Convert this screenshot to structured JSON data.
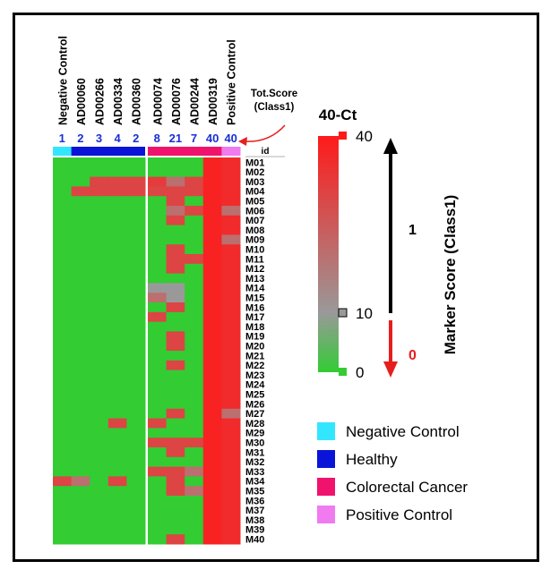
{
  "chart_data": {
    "type": "heatmap",
    "columns": [
      "Negative Control",
      "AD00060",
      "AD00266",
      "AD00334",
      "AD00360",
      "AD00074",
      "AD00076",
      "AD00244",
      "AD00319",
      "Positive Control"
    ],
    "tot_scores": [
      "1",
      "2",
      "3",
      "4",
      "2",
      "8",
      "21",
      "7",
      "40",
      "40"
    ],
    "groups": [
      "Negative Control",
      "Healthy",
      "Healthy",
      "Healthy",
      "Healthy",
      "Colorectal Cancer",
      "Colorectal Cancer",
      "Colorectal Cancer",
      "Colorectal Cancer",
      "Positive Control"
    ],
    "row_header": "id",
    "rows": [
      "M01",
      "M02",
      "M03",
      "M04",
      "M05",
      "M06",
      "M07",
      "M08",
      "M09",
      "M10",
      "M11",
      "M12",
      "M13",
      "M14",
      "M15",
      "M16",
      "M17",
      "M18",
      "M19",
      "M20",
      "M21",
      "M22",
      "M23",
      "M24",
      "M25",
      "M26",
      "M27",
      "M28",
      "M29",
      "M30",
      "M31",
      "M32",
      "M33",
      "M34",
      "M35",
      "M36",
      "M37",
      "M38",
      "M39",
      "M40"
    ],
    "values_40_minus_ct": [
      [
        0,
        0,
        0,
        0,
        0,
        0,
        0,
        0,
        38,
        36
      ],
      [
        0,
        0,
        0,
        0,
        0,
        0,
        0,
        0,
        38,
        36
      ],
      [
        0,
        0,
        30,
        30,
        30,
        32,
        20,
        30,
        38,
        36
      ],
      [
        0,
        30,
        30,
        30,
        30,
        30,
        30,
        30,
        38,
        36
      ],
      [
        0,
        0,
        0,
        0,
        0,
        0,
        30,
        0,
        38,
        36
      ],
      [
        0,
        0,
        0,
        0,
        0,
        0,
        20,
        30,
        38,
        20
      ],
      [
        0,
        0,
        0,
        0,
        0,
        0,
        30,
        0,
        38,
        36
      ],
      [
        0,
        0,
        0,
        0,
        0,
        0,
        0,
        0,
        38,
        36
      ],
      [
        0,
        0,
        0,
        0,
        0,
        0,
        0,
        0,
        38,
        20
      ],
      [
        0,
        0,
        0,
        0,
        0,
        0,
        30,
        0,
        38,
        36
      ],
      [
        0,
        0,
        0,
        0,
        0,
        0,
        30,
        30,
        38,
        36
      ],
      [
        0,
        0,
        0,
        0,
        0,
        0,
        30,
        0,
        38,
        36
      ],
      [
        0,
        0,
        0,
        0,
        0,
        0,
        0,
        0,
        38,
        36
      ],
      [
        0,
        0,
        0,
        0,
        0,
        10,
        10,
        0,
        38,
        36
      ],
      [
        0,
        0,
        0,
        0,
        0,
        20,
        10,
        0,
        38,
        36
      ],
      [
        0,
        0,
        0,
        0,
        0,
        0,
        30,
        0,
        38,
        36
      ],
      [
        0,
        0,
        0,
        0,
        0,
        30,
        0,
        0,
        38,
        36
      ],
      [
        0,
        0,
        0,
        0,
        0,
        0,
        0,
        0,
        38,
        36
      ],
      [
        0,
        0,
        0,
        0,
        0,
        0,
        30,
        0,
        38,
        36
      ],
      [
        0,
        0,
        0,
        0,
        0,
        0,
        30,
        0,
        38,
        36
      ],
      [
        0,
        0,
        0,
        0,
        0,
        0,
        0,
        0,
        38,
        36
      ],
      [
        0,
        0,
        0,
        0,
        0,
        0,
        30,
        0,
        38,
        36
      ],
      [
        0,
        0,
        0,
        0,
        0,
        0,
        0,
        0,
        38,
        36
      ],
      [
        0,
        0,
        0,
        0,
        0,
        0,
        0,
        0,
        38,
        36
      ],
      [
        0,
        0,
        0,
        0,
        0,
        0,
        0,
        0,
        38,
        36
      ],
      [
        0,
        0,
        0,
        0,
        0,
        0,
        0,
        0,
        38,
        36
      ],
      [
        0,
        0,
        0,
        0,
        0,
        0,
        30,
        0,
        38,
        20
      ],
      [
        0,
        0,
        0,
        30,
        0,
        30,
        0,
        0,
        38,
        36
      ],
      [
        0,
        0,
        0,
        0,
        0,
        0,
        0,
        0,
        38,
        36
      ],
      [
        0,
        0,
        0,
        0,
        0,
        30,
        30,
        30,
        38,
        36
      ],
      [
        0,
        0,
        0,
        0,
        0,
        0,
        30,
        0,
        38,
        36
      ],
      [
        0,
        0,
        0,
        0,
        0,
        0,
        0,
        0,
        38,
        36
      ],
      [
        0,
        0,
        0,
        0,
        0,
        30,
        30,
        20,
        38,
        36
      ],
      [
        30,
        20,
        0,
        30,
        0,
        0,
        30,
        0,
        38,
        36
      ],
      [
        0,
        0,
        0,
        0,
        0,
        0,
        30,
        20,
        38,
        36
      ],
      [
        0,
        0,
        0,
        0,
        0,
        0,
        0,
        0,
        38,
        36
      ],
      [
        0,
        0,
        0,
        0,
        0,
        0,
        0,
        0,
        38,
        36
      ],
      [
        0,
        0,
        0,
        0,
        0,
        0,
        0,
        0,
        38,
        36
      ],
      [
        0,
        0,
        0,
        0,
        0,
        0,
        0,
        0,
        38,
        36
      ],
      [
        0,
        0,
        0,
        0,
        0,
        0,
        30,
        0,
        38,
        36
      ]
    ],
    "annotation": "Tot.Score\n(Class1)",
    "colorbar": {
      "title": "40-Ct",
      "min": 0,
      "max": 40,
      "ticks": [
        "40",
        "10",
        "0"
      ],
      "mid": 10
    },
    "score_axis": {
      "label": "Marker Score (Class1)",
      "upper_class": "1",
      "lower_class": "0"
    },
    "legend": [
      {
        "label": "Negative Control",
        "color": "#33e6ff"
      },
      {
        "label": "Healthy",
        "color": "#0a14d9"
      },
      {
        "label": "Colorectal Cancer",
        "color": "#f0136e"
      },
      {
        "label": "Positive Control",
        "color": "#f07af0"
      }
    ],
    "colors": {
      "low": "#33cc33",
      "mid": "#999999",
      "high": "#ff1a1a",
      "score_text": "#1a2fd6"
    }
  }
}
